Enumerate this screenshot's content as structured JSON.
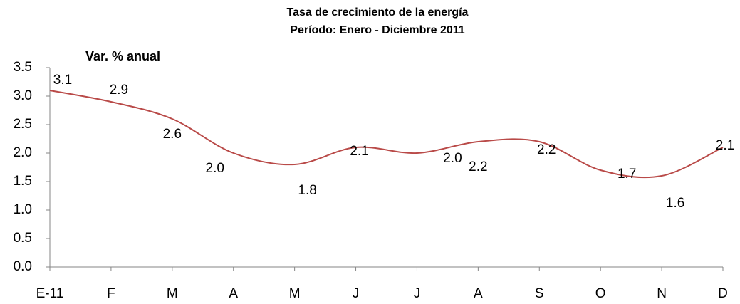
{
  "chart_data": {
    "type": "line",
    "title": "Tasa de crecimiento de la energía",
    "subtitle": "Período: Enero -  Diciembre 2011",
    "ylabel": "Var. % anual",
    "categories": [
      "E-11",
      "F",
      "M",
      "A",
      "M",
      "J",
      "J",
      "A",
      "S",
      "O",
      "N",
      "D"
    ],
    "series": [
      {
        "name": "Var. % anual",
        "color": "#b94a48",
        "values": [
          3.1,
          2.9,
          2.6,
          2.0,
          1.8,
          2.1,
          2.0,
          2.2,
          2.2,
          1.7,
          1.6,
          2.1
        ],
        "value_labels": [
          "3.1",
          "2.9",
          "2.6",
          "2.0",
          "1.8",
          "2.1",
          "2.0",
          "2.2",
          "2.2",
          "1.7",
          "1.6",
          "2.1"
        ]
      }
    ],
    "ylim": [
      0,
      3.5
    ],
    "yticks": [
      {
        "value": 0,
        "label": "0.0"
      },
      0.5,
      {
        "value": 1,
        "label": "1.0"
      },
      1.5,
      {
        "value": 2,
        "label": "2.0"
      },
      2.5,
      {
        "value": 3,
        "label": "3.0"
      },
      3.5
    ],
    "grid": false,
    "smooth": true
  }
}
